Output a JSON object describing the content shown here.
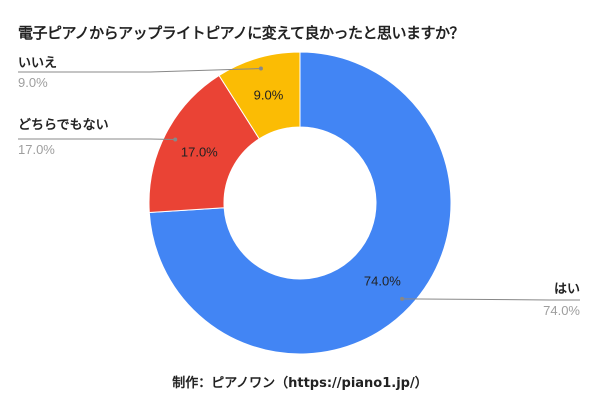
{
  "chart_data": {
    "type": "pie",
    "donut": true,
    "title": "電子ピアノからアップライトピアノに変えて良かったと思いますか？",
    "slices": [
      {
        "label": "はい",
        "value": 74.0,
        "display": "74.0%",
        "color": "#4285f4"
      },
      {
        "label": "どちらでもない",
        "value": 17.0,
        "display": "17.0%",
        "color": "#ea4335"
      },
      {
        "label": "いいえ",
        "value": 9.0,
        "display": "9.0%",
        "color": "#fbbc04"
      }
    ],
    "legend": "outside labels with leader lines"
  },
  "credit": "制作：ピアノワン（https://piano1.jp/）"
}
